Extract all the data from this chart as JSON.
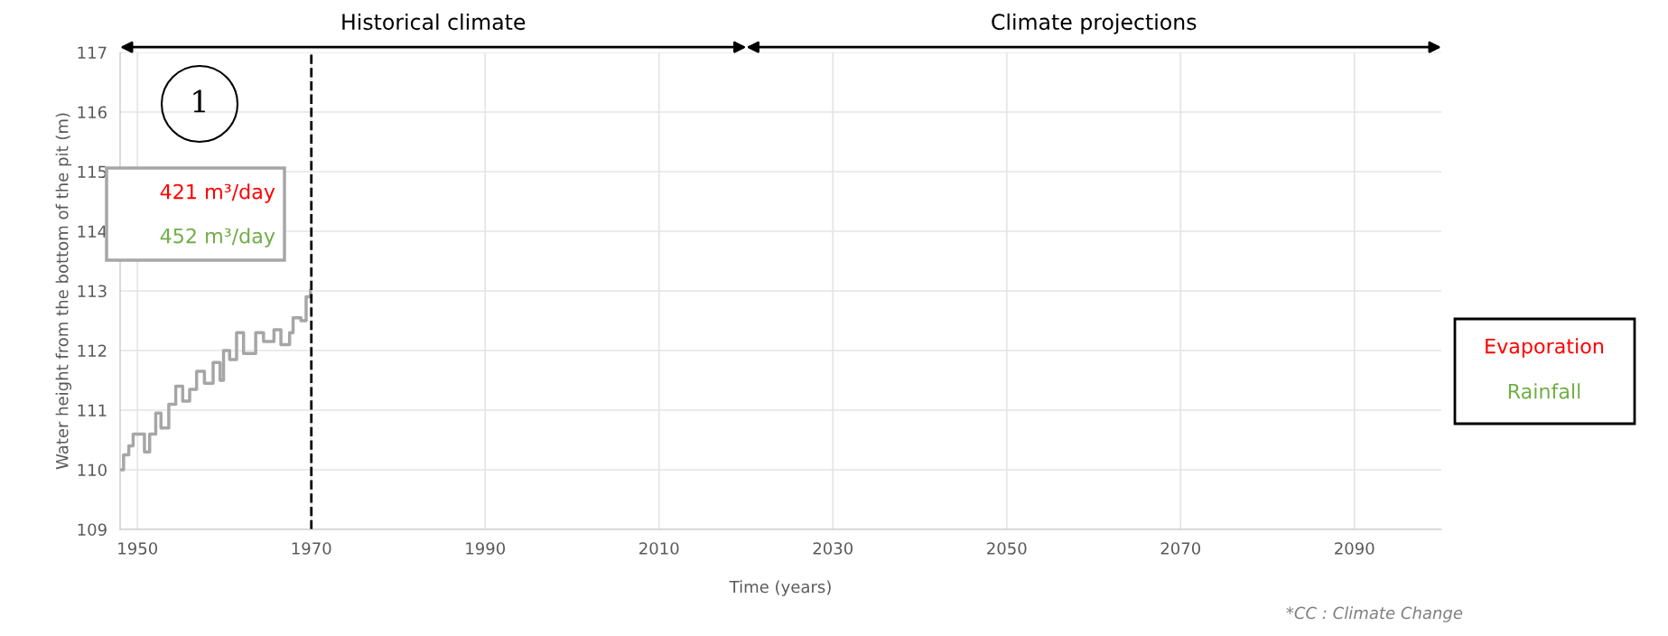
{
  "chart_data": {
    "type": "step",
    "xlabel": "Time (years)",
    "ylabel": "Water height from the bottom of the pit (m)",
    "series": [
      {
        "color": "#a6a6a6",
        "x": [
          1948.0,
          1948.4,
          1949.0,
          1949.5,
          1950.3,
          1950.8,
          1951.4,
          1952.1,
          1952.7,
          1953.6,
          1954.4,
          1955.2,
          1956.0,
          1956.8,
          1957.7,
          1958.7,
          1959.5,
          1959.9,
          1960.6,
          1961.4,
          1962.2,
          1963.0,
          1963.6,
          1964.5,
          1965.7,
          1966.5,
          1967.5,
          1967.9,
          1968.8,
          1969.4,
          1969.9
        ],
        "values": [
          110.0,
          110.25,
          110.4,
          110.6,
          110.6,
          110.3,
          110.6,
          110.95,
          110.7,
          111.1,
          111.4,
          111.15,
          111.35,
          111.65,
          111.45,
          111.8,
          111.5,
          112.0,
          111.85,
          112.3,
          111.95,
          111.95,
          112.3,
          112.15,
          112.35,
          112.1,
          112.3,
          112.55,
          112.5,
          112.9,
          113.0
        ]
      }
    ],
    "xlim": [
      1948,
      2100
    ],
    "xticks": [
      1950,
      1970,
      1990,
      2010,
      2030,
      2050,
      2070,
      2090
    ],
    "ylim": [
      109,
      117
    ],
    "yticks": [
      109,
      110,
      111,
      112,
      113,
      114,
      115,
      116,
      117
    ],
    "grid": true,
    "line_style": "solid",
    "marker": "none",
    "ref_lines": [
      {
        "axis": "x",
        "value": 1970,
        "label": null,
        "color": "#000000",
        "line_style": "dashed"
      }
    ],
    "annotations": [
      "Historical climate",
      "Climate projections",
      "1",
      "421 m³/day",
      "452 m³/day",
      "Evaporation",
      "Rainfall",
      "*CC : Climate Change"
    ]
  }
}
